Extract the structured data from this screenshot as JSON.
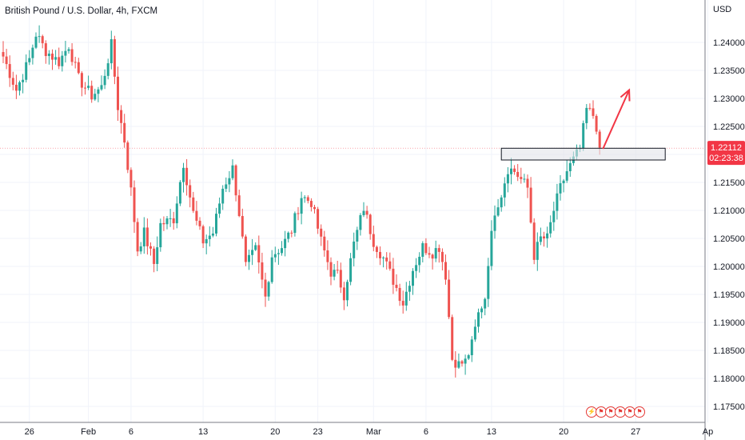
{
  "header": {
    "title": "British Pound / U.S. Dollar, 4h, FXCM"
  },
  "price_axis": {
    "unit": "USD"
  },
  "last_price": {
    "value": "1.22112",
    "countdown": "02:23:38",
    "color": "#f23645"
  },
  "colors": {
    "up": "#26a69a",
    "down": "#ef5350",
    "grid": "#f0f3fa",
    "axis": "#787b86",
    "annotation": "#f23645",
    "zone_fill": "#e3e5ea",
    "zone_border": "#131722"
  },
  "event_icons": [
    "lightning-icon",
    "flag-icon",
    "flag-icon",
    "flag-icon",
    "flag-icon",
    "flag-icon"
  ],
  "chart_data": {
    "type": "candlestick",
    "title": "British Pound / U.S. Dollar, 4h, FXCM",
    "ylabel": "USD",
    "ylim": [
      1.1725,
      1.2475
    ],
    "y_ticks": [
      "1.24000",
      "1.23500",
      "1.23000",
      "1.22500",
      "1.22000",
      "1.21500",
      "1.21000",
      "1.20500",
      "1.20000",
      "1.19500",
      "1.19000",
      "1.18500",
      "1.18000",
      "1.17500"
    ],
    "y_tick_values": [
      1.24,
      1.235,
      1.23,
      1.225,
      1.22,
      1.215,
      1.21,
      1.205,
      1.2,
      1.195,
      1.19,
      1.185,
      1.18,
      1.175
    ],
    "x_ticks": [
      "26",
      "Feb",
      "6",
      "13",
      "20",
      "23",
      "Mar",
      "6",
      "13",
      "20",
      "27",
      "Ap"
    ],
    "x_tick_index": [
      8,
      26,
      39,
      61,
      83,
      96,
      113,
      129,
      149,
      171,
      193,
      215
    ],
    "x_range": [
      0,
      224
    ],
    "grid": true,
    "legend": "none",
    "last_price": 1.22112,
    "annotations": {
      "zone": {
        "x_start": 152,
        "x_end": 202,
        "y_low": 1.219,
        "y_high": 1.2211
      },
      "arrow": {
        "x_start": 183,
        "y_start": 1.221,
        "x_end": 191,
        "y_end": 1.2315
      }
    },
    "anchors": [
      [
        0,
        1.2375
      ],
      [
        4,
        1.2315
      ],
      [
        8,
        1.237
      ],
      [
        10,
        1.2415
      ],
      [
        13,
        1.2385
      ],
      [
        17,
        1.2365
      ],
      [
        20,
        1.2395
      ],
      [
        23,
        1.2335
      ],
      [
        27,
        1.2305
      ],
      [
        30,
        1.232
      ],
      [
        33,
        1.2395
      ],
      [
        35,
        1.2285
      ],
      [
        37,
        1.2225
      ],
      [
        39,
        1.2135
      ],
      [
        41,
        1.203
      ],
      [
        43,
        1.206
      ],
      [
        46,
        1.2005
      ],
      [
        48,
        1.2075
      ],
      [
        52,
        1.2085
      ],
      [
        55,
        1.2185
      ],
      [
        58,
        1.2095
      ],
      [
        61,
        1.2045
      ],
      [
        64,
        1.206
      ],
      [
        67,
        1.214
      ],
      [
        70,
        1.2175
      ],
      [
        72,
        1.2095
      ],
      [
        74,
        1.2
      ],
      [
        77,
        1.203
      ],
      [
        80,
        1.1945
      ],
      [
        82,
        1.202
      ],
      [
        85,
        1.2035
      ],
      [
        88,
        1.2065
      ],
      [
        91,
        1.2125
      ],
      [
        94,
        1.2115
      ],
      [
        97,
        1.2045
      ],
      [
        100,
        1.199
      ],
      [
        102,
        1.1985
      ],
      [
        104,
        1.195
      ],
      [
        107,
        1.204
      ],
      [
        110,
        1.2105
      ],
      [
        113,
        1.2045
      ],
      [
        116,
        1.2015
      ],
      [
        119,
        1.1975
      ],
      [
        122,
        1.1935
      ],
      [
        125,
        1.1995
      ],
      [
        128,
        1.2035
      ],
      [
        131,
        1.2025
      ],
      [
        133,
        1.2035
      ],
      [
        135,
        1.1985
      ],
      [
        137,
        1.1835
      ],
      [
        139,
        1.1825
      ],
      [
        141,
        1.183
      ],
      [
        143,
        1.186
      ],
      [
        145,
        1.1915
      ],
      [
        147,
        1.1945
      ],
      [
        148,
        1.201
      ],
      [
        150,
        1.21
      ],
      [
        152,
        1.213
      ],
      [
        154,
        1.2175
      ],
      [
        156,
        1.217
      ],
      [
        158,
        1.2155
      ],
      [
        160,
        1.214
      ],
      [
        162,
        1.202
      ],
      [
        164,
        1.205
      ],
      [
        166,
        1.205
      ],
      [
        168,
        1.21
      ],
      [
        170,
        1.214
      ],
      [
        172,
        1.217
      ],
      [
        174,
        1.219
      ],
      [
        176,
        1.221
      ],
      [
        178,
        1.228
      ],
      [
        180,
        1.227
      ],
      [
        181,
        1.225
      ],
      [
        182,
        1.2212
      ]
    ]
  }
}
